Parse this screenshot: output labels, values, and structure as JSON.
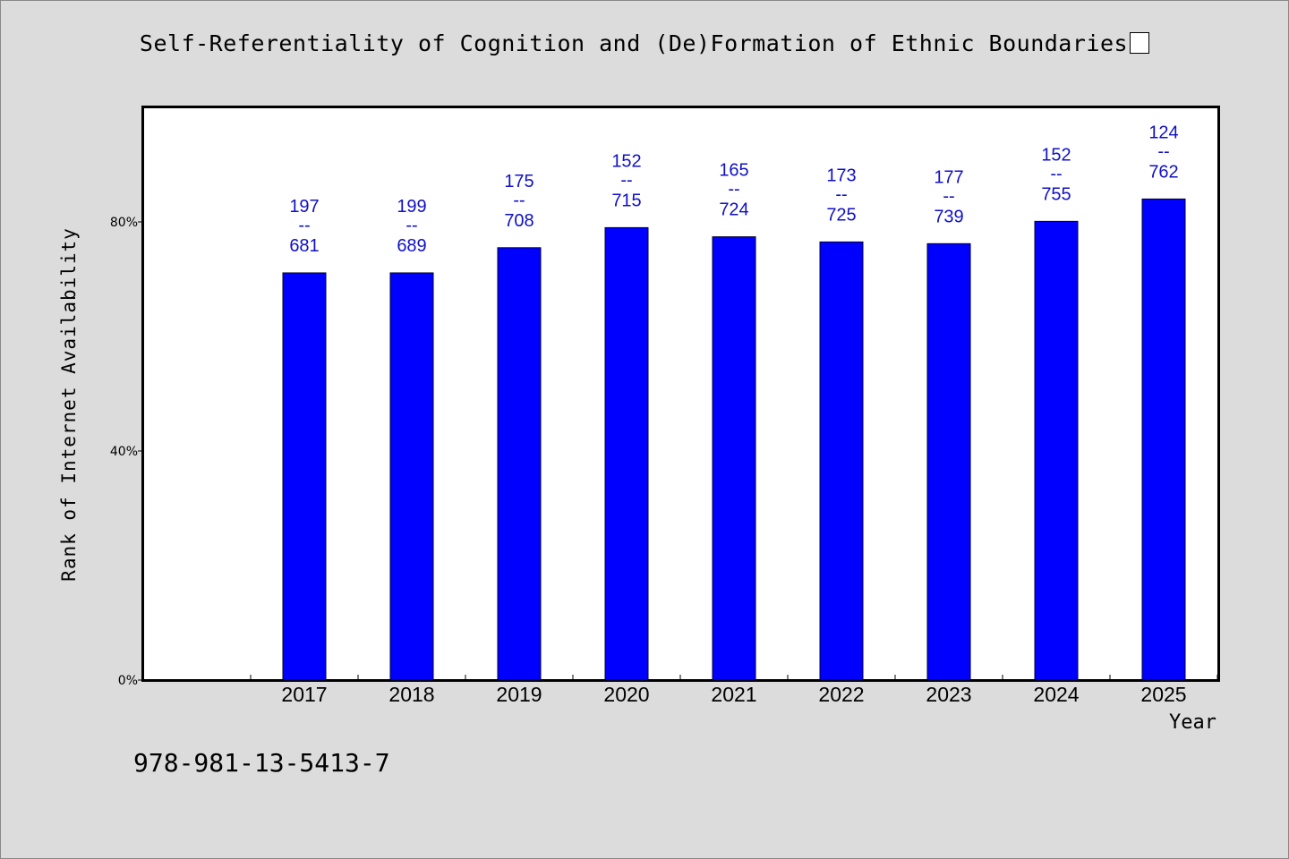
{
  "chart_data": {
    "type": "bar",
    "title": "Self-Referentiality of Cognition and (De)Formation of Ethnic Boundaries",
    "xlabel": "Year",
    "ylabel": "Rank of Internet Availability",
    "categories": [
      "2017",
      "2018",
      "2019",
      "2020",
      "2021",
      "2022",
      "2023",
      "2024",
      "2025"
    ],
    "values": [
      0.711,
      0.711,
      0.755,
      0.79,
      0.774,
      0.765,
      0.762,
      0.801,
      0.84
    ],
    "data_labels": [
      [
        "197",
        "681"
      ],
      [
        "199",
        "689"
      ],
      [
        "175",
        "708"
      ],
      [
        "152",
        "715"
      ],
      [
        "165",
        "724"
      ],
      [
        "173",
        "725"
      ],
      [
        "177",
        "739"
      ],
      [
        "152",
        "755"
      ],
      [
        "124",
        "762"
      ]
    ],
    "data_label_separator": "--",
    "yticks": [
      0,
      0.4,
      0.8
    ],
    "ytick_labels": [
      "0%",
      "40%",
      "80%"
    ],
    "ylim": [
      0,
      1.0
    ],
    "bar_color": "#0000ff",
    "label_color": "#1010c8",
    "grid": false,
    "legend": "none"
  },
  "footer": {
    "isbn": "978-981-13-5413-7"
  }
}
